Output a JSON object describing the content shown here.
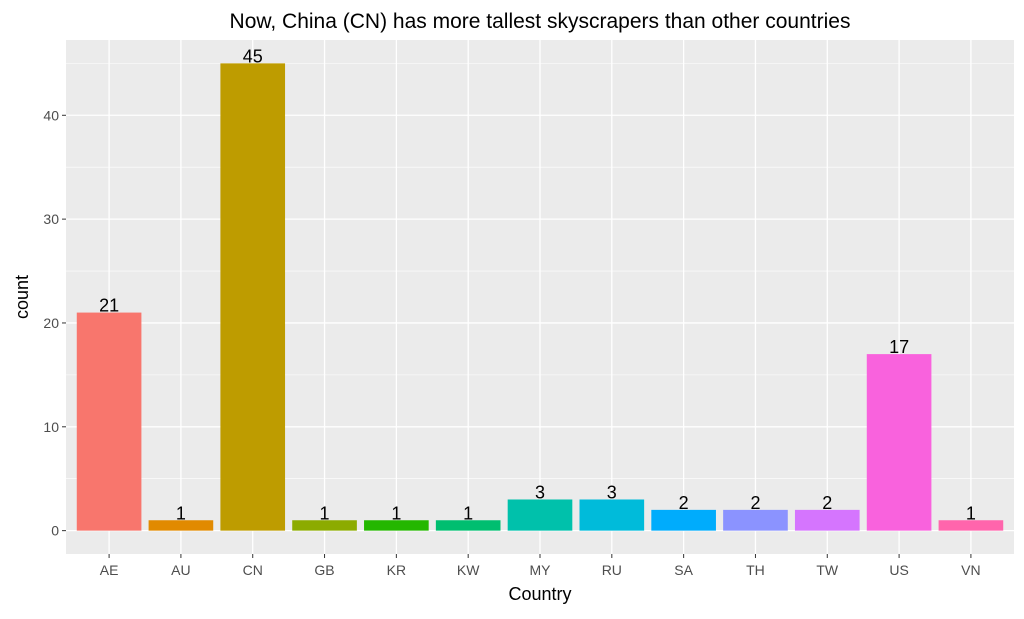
{
  "chart_data": {
    "type": "bar",
    "title": "Now, China (CN) has more tallest skyscrapers than other countries",
    "xlabel": "Country",
    "ylabel": "count",
    "categories": [
      "AE",
      "AU",
      "CN",
      "GB",
      "KR",
      "KW",
      "MY",
      "RU",
      "SA",
      "TH",
      "TW",
      "US",
      "VN"
    ],
    "values": [
      21,
      1,
      45,
      1,
      1,
      1,
      3,
      3,
      2,
      2,
      2,
      17,
      1
    ],
    "colors": [
      "#F8766D",
      "#E18A00",
      "#BE9C00",
      "#8CAB00",
      "#24B700",
      "#00BE70",
      "#00C1AB",
      "#00BBDA",
      "#00ACFC",
      "#8B93FF",
      "#D575FE",
      "#F962DD",
      "#FF65AC"
    ],
    "y_ticks": [
      0,
      10,
      20,
      30,
      40
    ],
    "ylim": [
      -2.25,
      47.25
    ],
    "grid": true,
    "panel_background": "#EBEBEB",
    "legend": "none"
  }
}
